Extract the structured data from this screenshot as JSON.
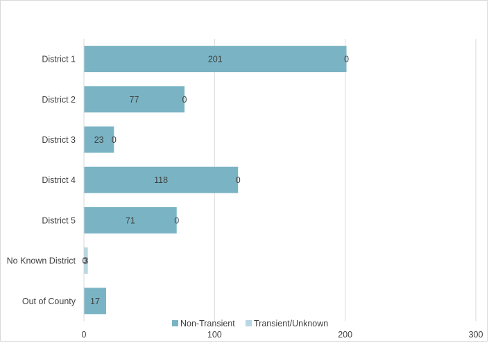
{
  "chart_data": {
    "type": "bar",
    "orientation": "horizontal",
    "stacked": true,
    "title": "",
    "xlabel": "",
    "ylabel": "",
    "categories": [
      "District 1",
      "District 2",
      "District 3",
      "District 4",
      "District 5",
      "No Known District",
      "Out of County"
    ],
    "series": [
      {
        "name": "Non-Transient",
        "color": "#7ab4c4",
        "values": [
          201,
          77,
          23,
          118,
          71,
          0,
          17
        ],
        "labels": [
          "201",
          "77",
          "23",
          "118",
          "71",
          "0",
          "17"
        ]
      },
      {
        "name": "Transient/Unknown",
        "color": "#b6d7e3",
        "values": [
          0,
          0,
          0,
          0,
          0,
          3,
          0
        ],
        "labels": [
          "0",
          "0",
          "0",
          "0",
          "0",
          "3",
          ""
        ]
      }
    ],
    "xlim": [
      0,
      300
    ],
    "xticks": [
      0,
      100,
      200,
      300
    ],
    "xtick_labels": [
      "0",
      "100",
      "200",
      "300"
    ],
    "grid": true,
    "legend": "bottom"
  }
}
